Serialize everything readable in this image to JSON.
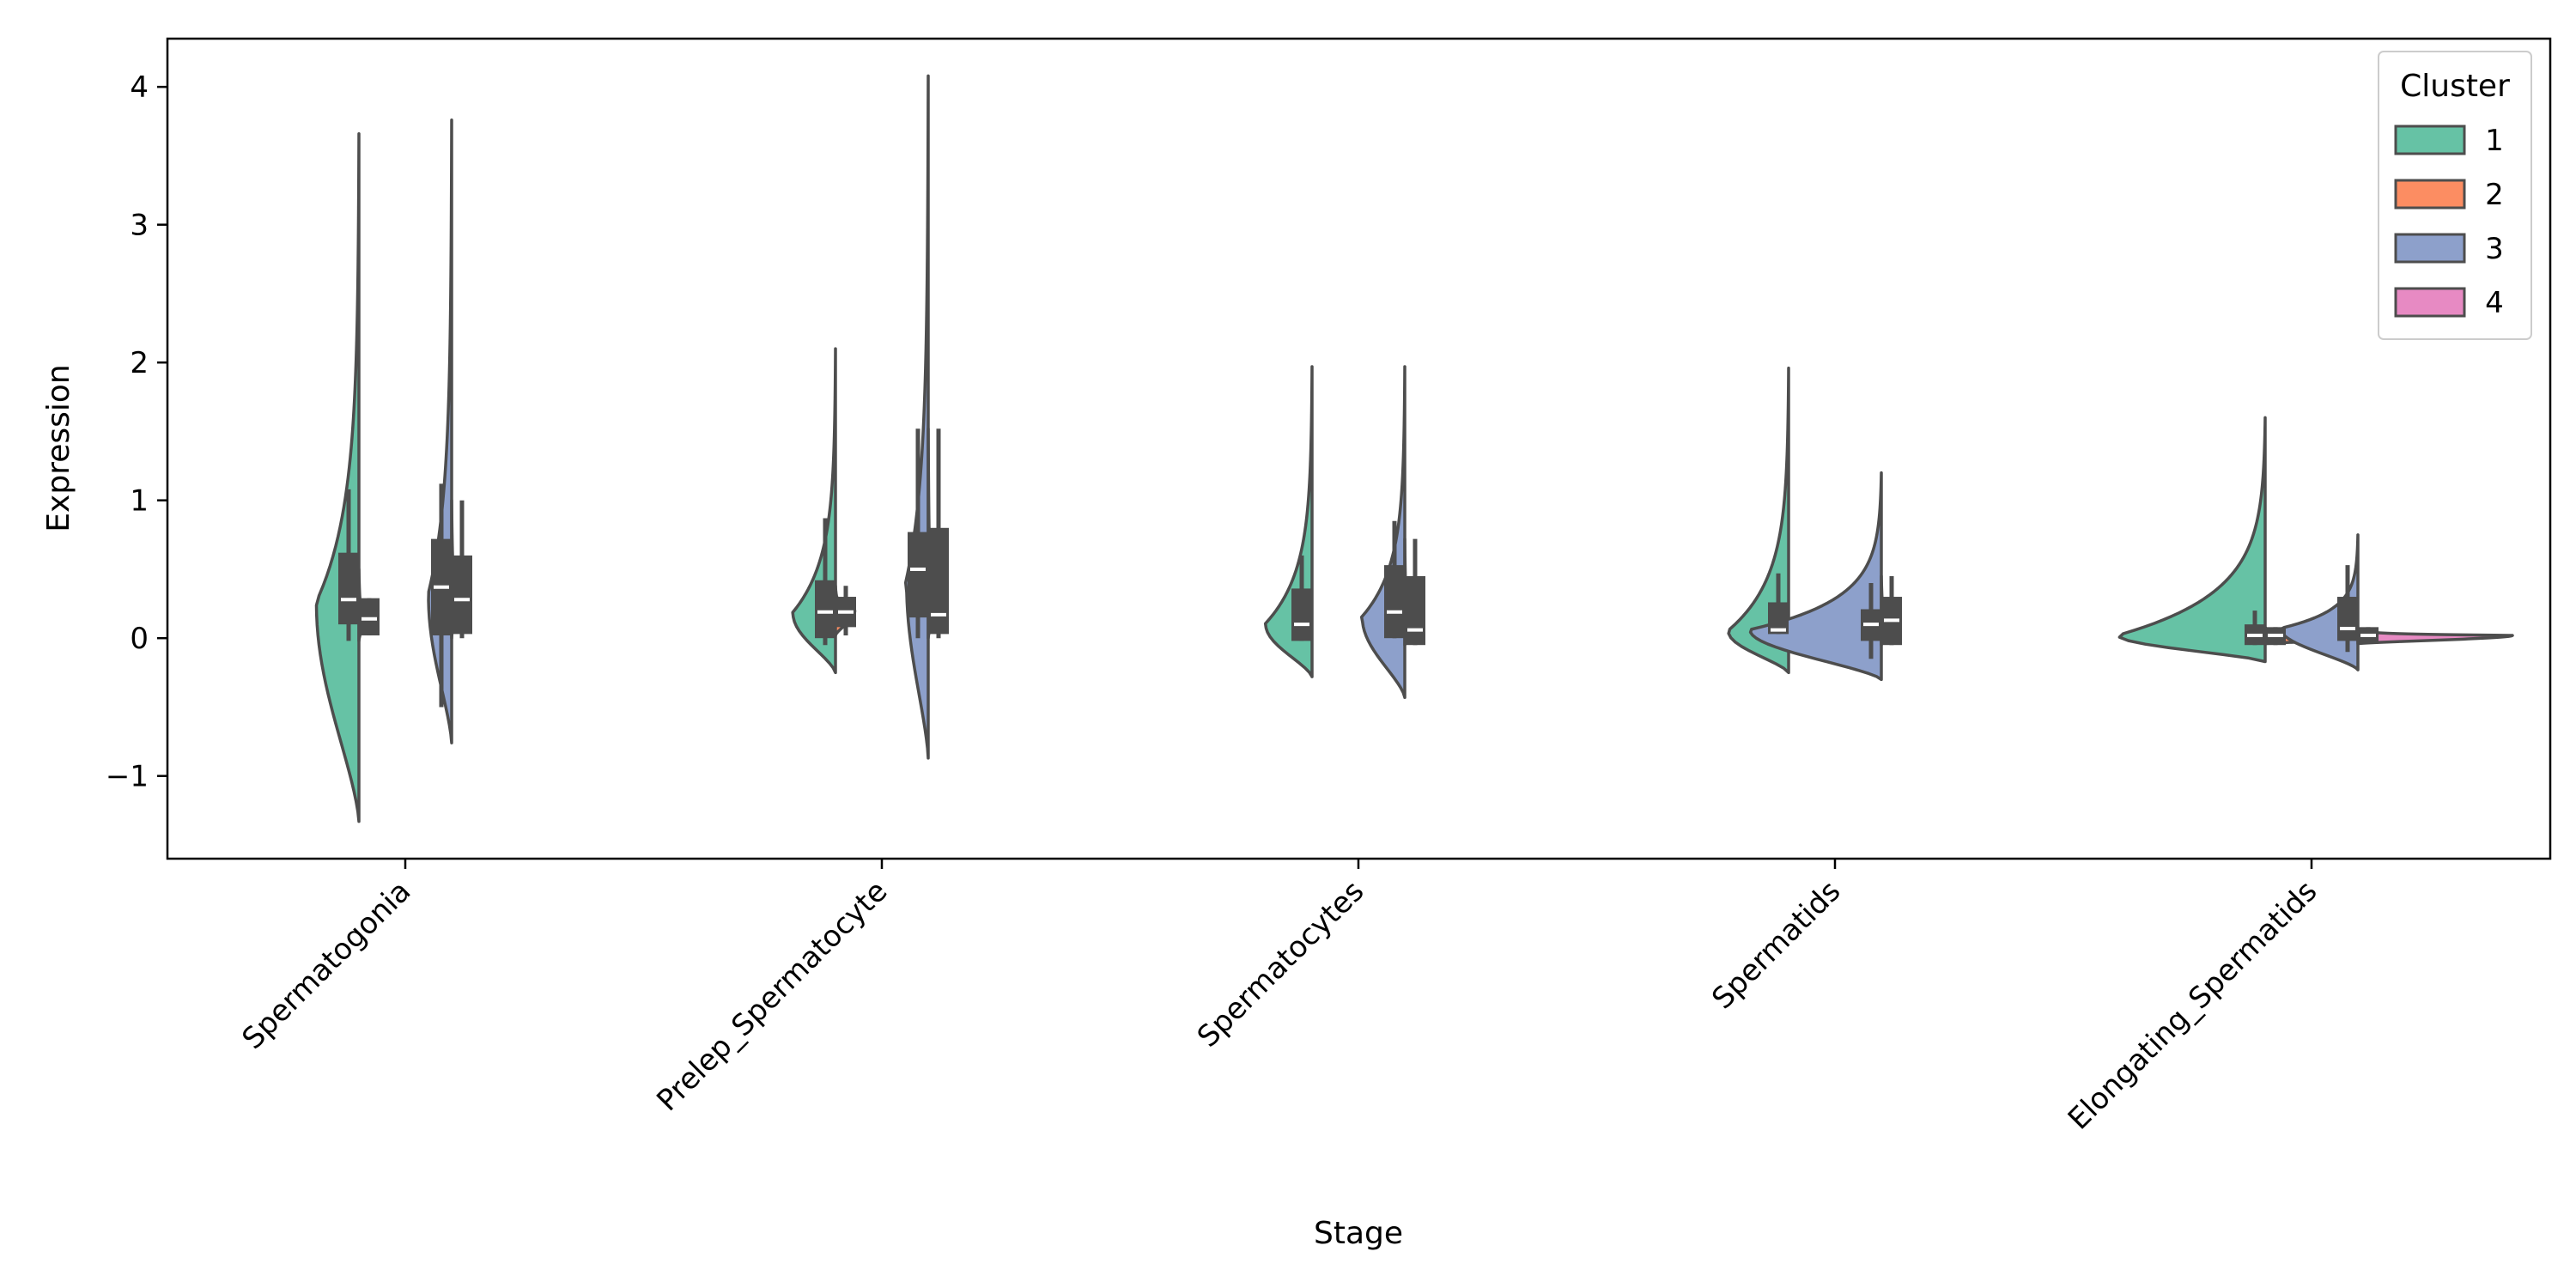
{
  "chart_data": {
    "type": "violin",
    "split": true,
    "xlabel": "Stage",
    "ylabel": "Expression",
    "ylim": [
      -1.6,
      4.35
    ],
    "yticks": [
      -1,
      0,
      1,
      2,
      3,
      4
    ],
    "ytick_labels": [
      "−1",
      "0",
      "1",
      "2",
      "3",
      "4"
    ],
    "grid": false,
    "categories": [
      "Spermatogonia",
      "Prelep_Spermatocyte",
      "Spermatocytes",
      "Spermatids",
      "Elongating_Spermatids"
    ],
    "legend": {
      "title": "Cluster",
      "placement": "top-right",
      "entries": [
        {
          "label": "1",
          "color": "#66c2a5"
        },
        {
          "label": "2",
          "color": "#fc8d62"
        },
        {
          "label": "3",
          "color": "#8da0cb"
        },
        {
          "label": "4",
          "color": "#e78ac3"
        }
      ]
    },
    "violins": [
      {
        "stage": "Spermatogonia",
        "pair": 0,
        "side": "left",
        "cluster": "1",
        "min": -1.33,
        "max": 3.66,
        "mode": 0.25,
        "width": 0.55,
        "q1": 0.1,
        "median": 0.28,
        "q3": 0.62,
        "whisker_low": -0.02,
        "whisker_high": 1.08
      },
      {
        "stage": "Spermatogonia",
        "pair": 0,
        "side": "right",
        "cluster": "3",
        "min": -0.02,
        "max": 0.5,
        "mode": 0.14,
        "width": 0.05,
        "q1": 0.02,
        "median": 0.14,
        "q3": 0.29,
        "whisker_low": 0.02,
        "whisker_high": 0.29
      },
      {
        "stage": "Spermatogonia",
        "pair": 1,
        "side": "left",
        "cluster": "3",
        "min": -0.76,
        "max": 3.76,
        "mode": 0.3,
        "width": 0.3,
        "q1": 0.02,
        "median": 0.37,
        "q3": 0.72,
        "whisker_low": -0.5,
        "whisker_high": 1.12
      },
      {
        "stage": "Spermatogonia",
        "pair": 1,
        "side": "right",
        "cluster": "3",
        "min": 0.0,
        "max": 1.0,
        "mode": 0.28,
        "width": 0.05,
        "q1": 0.03,
        "median": 0.28,
        "q3": 0.6,
        "whisker_low": 0.0,
        "whisker_high": 1.0
      },
      {
        "stage": "Prelep_Spermatocyte",
        "pair": 0,
        "side": "left",
        "cluster": "1",
        "min": -0.25,
        "max": 2.1,
        "mode": 0.18,
        "width": 0.55,
        "q1": 0.0,
        "median": 0.19,
        "q3": 0.42,
        "whisker_low": -0.05,
        "whisker_high": 0.87
      },
      {
        "stage": "Prelep_Spermatocyte",
        "pair": 0,
        "side": "right",
        "cluster": "2",
        "min": 0.02,
        "max": 0.38,
        "mode": 0.2,
        "width": 0.25,
        "q1": 0.08,
        "median": 0.19,
        "q3": 0.3,
        "whisker_low": 0.02,
        "whisker_high": 0.38
      },
      {
        "stage": "Prelep_Spermatocyte",
        "pair": 1,
        "side": "left",
        "cluster": "3",
        "min": -0.87,
        "max": 4.08,
        "mode": 0.4,
        "width": 0.28,
        "q1": 0.15,
        "median": 0.5,
        "q3": 0.77,
        "whisker_low": 0.0,
        "whisker_high": 1.52
      },
      {
        "stage": "Prelep_Spermatocyte",
        "pair": 1,
        "side": "right",
        "cluster": "3",
        "min": 0.0,
        "max": 1.52,
        "mode": 0.18,
        "width": 0.05,
        "q1": 0.03,
        "median": 0.17,
        "q3": 0.8,
        "whisker_low": 0.0,
        "whisker_high": 1.52
      },
      {
        "stage": "Spermatocytes",
        "pair": 0,
        "side": "left",
        "cluster": "1",
        "min": -0.28,
        "max": 1.97,
        "mode": 0.1,
        "width": 0.6,
        "q1": -0.02,
        "median": 0.1,
        "q3": 0.36,
        "whisker_low": -0.02,
        "whisker_high": 0.6
      },
      {
        "stage": "Spermatocytes",
        "pair": 1,
        "side": "left",
        "cluster": "3",
        "min": -0.43,
        "max": 1.97,
        "mode": 0.15,
        "width": 0.55,
        "q1": 0.0,
        "median": 0.19,
        "q3": 0.53,
        "whisker_low": 0.0,
        "whisker_high": 0.85
      },
      {
        "stage": "Spermatocytes",
        "pair": 1,
        "side": "right",
        "cluster": "3",
        "min": -0.05,
        "max": 0.72,
        "mode": 0.06,
        "width": 0.05,
        "q1": -0.05,
        "median": 0.06,
        "q3": 0.45,
        "whisker_low": -0.05,
        "whisker_high": 0.72
      },
      {
        "stage": "Spermatids",
        "pair": 0,
        "side": "left",
        "cluster": "1",
        "min": -0.25,
        "max": 1.96,
        "mode": 0.05,
        "width": 0.78,
        "q1": 0.03,
        "median": 0.06,
        "q3": 0.26,
        "whisker_low": 0.03,
        "whisker_high": 0.47
      },
      {
        "stage": "Spermatids",
        "pair": 1,
        "side": "left",
        "cluster": "3",
        "min": -0.3,
        "max": 1.2,
        "mode": 0.06,
        "width": 1.7,
        "q1": -0.02,
        "median": 0.1,
        "q3": 0.21,
        "whisker_low": -0.15,
        "whisker_high": 0.4
      },
      {
        "stage": "Spermatids",
        "pair": 1,
        "side": "right",
        "cluster": "3",
        "min": -0.05,
        "max": 0.45,
        "mode": 0.12,
        "width": 0.05,
        "q1": -0.05,
        "median": 0.13,
        "q3": 0.3,
        "whisker_low": -0.05,
        "whisker_high": 0.45
      },
      {
        "stage": "Elongating_Spermatids",
        "pair": 0,
        "side": "left",
        "cluster": "1",
        "min": -0.17,
        "max": 1.6,
        "mode": 0.02,
        "width": 1.9,
        "q1": -0.05,
        "median": 0.02,
        "q3": 0.1,
        "whisker_low": -0.05,
        "whisker_high": 0.2
      },
      {
        "stage": "Elongating_Spermatids",
        "pair": 0,
        "side": "right",
        "cluster": "2",
        "min": -0.04,
        "max": 0.08,
        "mode": 0.02,
        "width": 2.3,
        "q1": -0.05,
        "median": 0.02,
        "q3": 0.08,
        "whisker_low": -0.05,
        "whisker_high": 0.08
      },
      {
        "stage": "Elongating_Spermatids",
        "pair": 1,
        "side": "left",
        "cluster": "3",
        "min": -0.23,
        "max": 0.75,
        "mode": 0.07,
        "width": 1.0,
        "q1": -0.02,
        "median": 0.07,
        "q3": 0.3,
        "whisker_low": -0.1,
        "whisker_high": 0.53
      },
      {
        "stage": "Elongating_Spermatids",
        "pair": 1,
        "side": "right",
        "cluster": "4",
        "min": -0.04,
        "max": 0.07,
        "mode": 0.02,
        "width": 2.0,
        "q1": -0.04,
        "median": 0.02,
        "q3": 0.08,
        "whisker_low": -0.04,
        "whisker_high": 0.08
      }
    ]
  }
}
